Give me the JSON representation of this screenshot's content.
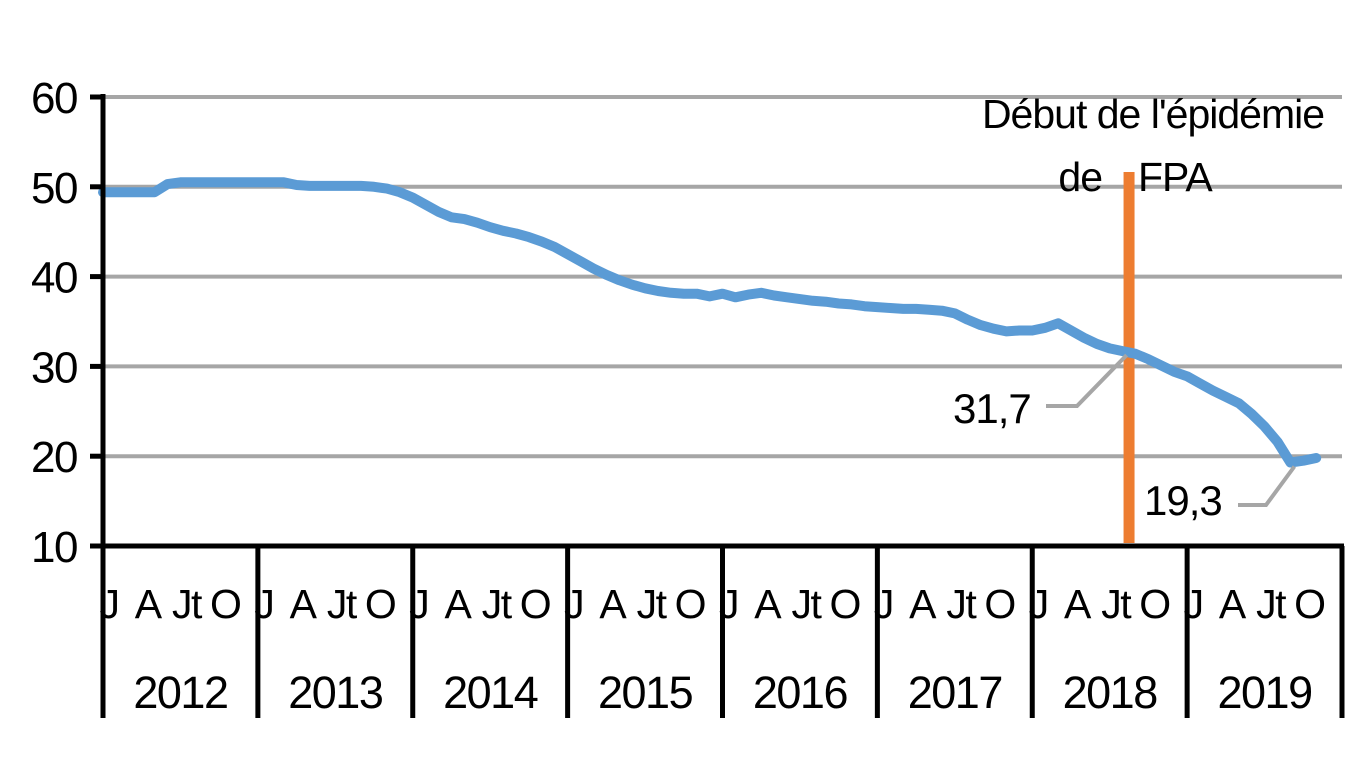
{
  "page": {
    "background": "#FFFFFF"
  },
  "colors": {
    "series_blue": "#5B9BD5",
    "event_orange": "#ED7D31",
    "grid_gray": "#A6A6A6",
    "leader_gray": "#A6A6A6",
    "text_black": "#000000"
  },
  "chart_data": {
    "type": "line",
    "title": "",
    "xlabel": "",
    "ylabel": "",
    "ylim": [
      10,
      60
    ],
    "y_ticks": [
      10,
      20,
      30,
      40,
      50,
      60
    ],
    "grid": true,
    "legend": "none",
    "x_start": "2012-01",
    "x_frequency": "monthly",
    "month_tick_labels": [
      "J",
      "A",
      "Jt",
      "O"
    ],
    "month_tick_offsets": [
      0,
      3,
      6,
      9
    ],
    "year_labels": [
      "2012",
      "2013",
      "2014",
      "2015",
      "2016",
      "2017",
      "2018",
      "2019"
    ],
    "series": [
      {
        "values": [
          49.4,
          49.4,
          49.4,
          49.4,
          49.4,
          50.3,
          50.5,
          50.5,
          50.5,
          50.5,
          50.5,
          50.5,
          50.5,
          50.5,
          50.5,
          50.2,
          50.1,
          50.1,
          50.1,
          50.1,
          50.1,
          50.0,
          49.8,
          49.4,
          48.8,
          48.0,
          47.2,
          46.6,
          46.4,
          46.0,
          45.5,
          45.1,
          44.8,
          44.4,
          43.9,
          43.3,
          42.5,
          41.7,
          40.9,
          40.2,
          39.6,
          39.1,
          38.7,
          38.4,
          38.2,
          38.1,
          38.1,
          37.8,
          38.1,
          37.7,
          38.0,
          38.2,
          37.9,
          37.7,
          37.5,
          37.3,
          37.2,
          37.0,
          36.9,
          36.7,
          36.6,
          36.5,
          36.4,
          36.4,
          36.3,
          36.2,
          35.9,
          35.2,
          34.6,
          34.2,
          33.9,
          34.0,
          34.0,
          34.3,
          34.8,
          34.0,
          33.2,
          32.5,
          32.0,
          31.7,
          31.4,
          30.8,
          30.1,
          29.4,
          28.9,
          28.1,
          27.3,
          26.6,
          25.9,
          24.7,
          23.3,
          21.6,
          19.3,
          19.5,
          19.8
        ]
      }
    ],
    "event_line": {
      "label_line1": "Début de l'épidémie",
      "label_line2_left": "de",
      "label_line2_right": "FPA",
      "x_month_index": 79.5,
      "color": "#ED7D31"
    },
    "callouts": [
      {
        "label": "31,7",
        "value": 31.7,
        "month_index": 79
      },
      {
        "label": "19,3",
        "value": 19.3,
        "month_index": 92
      }
    ]
  }
}
